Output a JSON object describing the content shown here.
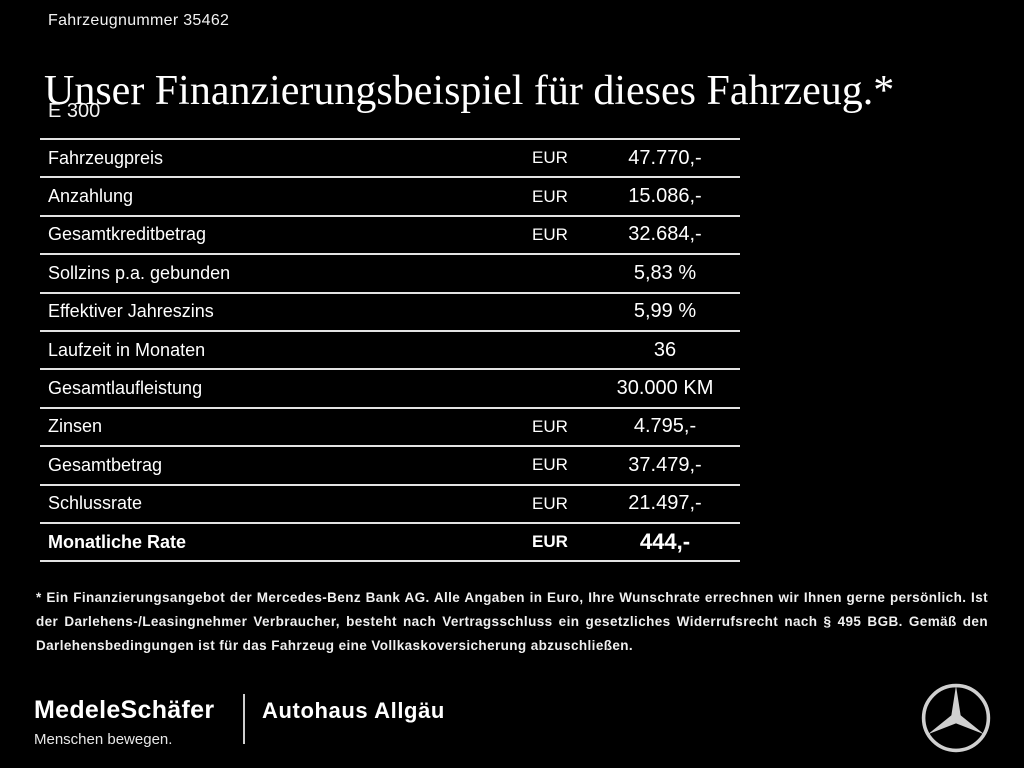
{
  "header": {
    "vehicle_number": "Fahrzeugnummer 35462",
    "title": "Unser Finanzierungsbeispiel für dieses Fahrzeug.*",
    "model": "E 300"
  },
  "table": {
    "rows": [
      {
        "label": "Fahrzeugpreis",
        "currency": "EUR",
        "value": "47.770,-",
        "emphasis": false
      },
      {
        "label": "Anzahlung",
        "currency": "EUR",
        "value": "15.086,-",
        "emphasis": false
      },
      {
        "label": "Gesamtkreditbetrag",
        "currency": "EUR",
        "value": "32.684,-",
        "emphasis": false
      },
      {
        "label": "Sollzins p.a. gebunden",
        "currency": "",
        "value": "5,83 %",
        "emphasis": false
      },
      {
        "label": "Effektiver Jahreszins",
        "currency": "",
        "value": "5,99 %",
        "emphasis": false
      },
      {
        "label": "Laufzeit in Monaten",
        "currency": "",
        "value": "36",
        "emphasis": false
      },
      {
        "label": "Gesamtlaufleistung",
        "currency": "",
        "value": "30.000 KM",
        "emphasis": false
      },
      {
        "label": "Zinsen",
        "currency": "EUR",
        "value": "4.795,-",
        "emphasis": false
      },
      {
        "label": "Gesamtbetrag",
        "currency": "EUR",
        "value": "37.479,-",
        "emphasis": false
      },
      {
        "label": "Schlussrate",
        "currency": "EUR",
        "value": "21.497,-",
        "emphasis": false
      },
      {
        "label": "Monatliche Rate",
        "currency": "EUR",
        "value": "444,-",
        "emphasis": true
      }
    ]
  },
  "footnote": "* Ein Finanzierungsangebot der Mercedes-Benz Bank AG. Alle Angaben in Euro, Ihre Wunschrate errechnen wir Ihnen gerne persönlich. Ist der Darlehens-/Leasingnehmer Verbraucher, besteht nach Vertragsschluss ein gesetzliches Widerrufsrecht nach § 495 BGB. Gemäß den Darlehensbedingungen ist für das Fahrzeug eine Vollkaskoversicherung abzuschließen.",
  "footer": {
    "dealer_name": "MedeleSchäfer",
    "dealer_tagline": "Menschen bewegen.",
    "dealer_secondary": "Autohaus Allgäu",
    "brand_logo_name": "mercedes-star-icon"
  },
  "colors": {
    "background": "#000000",
    "text": "#ffffff",
    "table_border": "#e3e3e3",
    "logo_silver": "#d0d0d0"
  }
}
